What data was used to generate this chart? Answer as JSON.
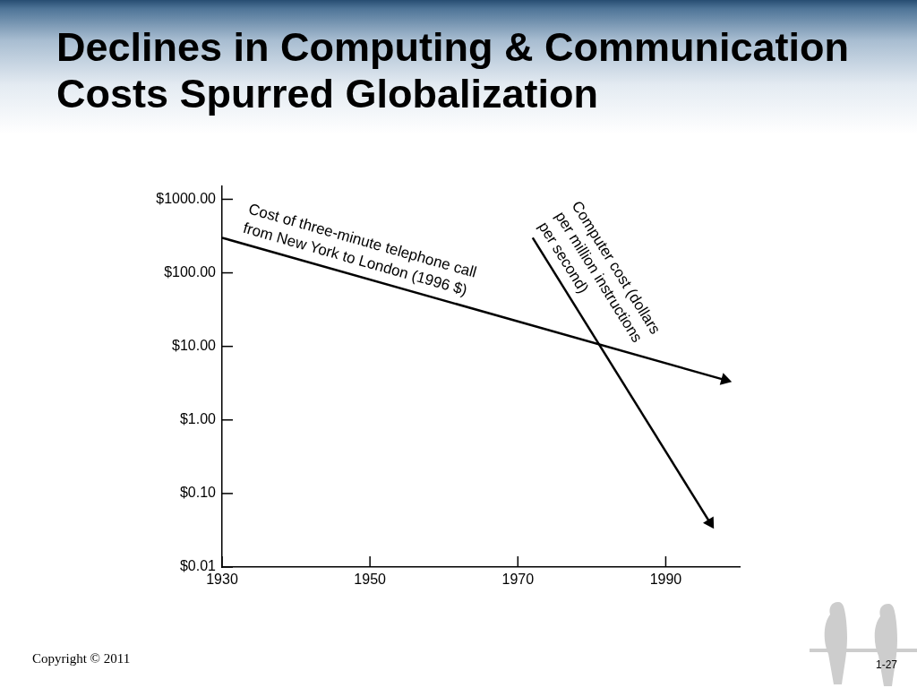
{
  "chart_data": {
    "type": "line",
    "title": "Declines in Computing & Communication Costs Spurred Globalization",
    "series": [
      {
        "name": "Cost of three-minute telephone call from New York to London (1996 $)",
        "color": "#000000",
        "x": [
          1930,
          1998
        ],
        "values": [
          300,
          3.5
        ]
      },
      {
        "name": "Computer cost (dollars per million instructions per second)",
        "color": "#000000",
        "x": [
          1972,
          1996
        ],
        "values": [
          300,
          0.04
        ]
      }
    ],
    "xlim": [
      1930,
      2000
    ],
    "xticks": [
      1930,
      1950,
      1970,
      1990
    ],
    "ylim": [
      0.01,
      1500
    ],
    "yticks": [
      {
        "value": 0.01,
        "label": "$0.01"
      },
      {
        "value": 0.1,
        "label": "$0.10"
      },
      {
        "value": 1,
        "label": "$1.00"
      },
      {
        "value": 10,
        "label": "$10.00"
      },
      {
        "value": 100,
        "label": "$100.00"
      },
      {
        "value": 1000,
        "label": "$1000.00"
      }
    ],
    "log": "y",
    "marker": "triangle",
    "line_style": "solid",
    "annotations": [
      "Copyright © 2011",
      "1-27"
    ]
  }
}
